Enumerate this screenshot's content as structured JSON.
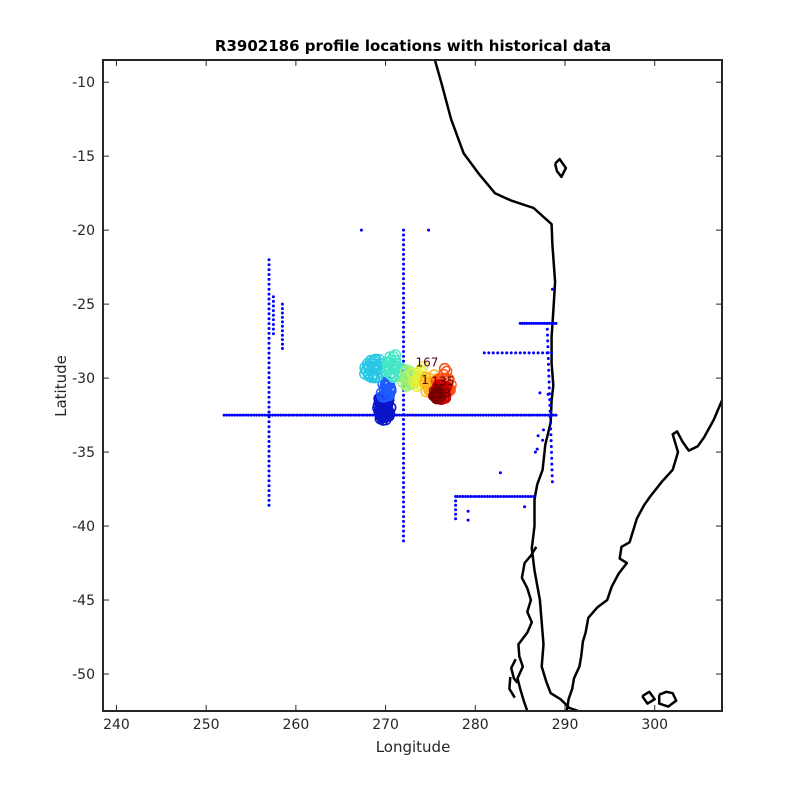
{
  "chart_data": {
    "type": "scatter",
    "title": "R3902186 profile locations with historical data",
    "xlabel": "Longitude",
    "ylabel": "Latitude",
    "xlim": [
      238.5,
      307.5
    ],
    "ylim": [
      -52.5,
      -8.5
    ],
    "xticks": [
      240,
      250,
      260,
      270,
      280,
      290,
      300
    ],
    "yticks": [
      -10,
      -15,
      -20,
      -25,
      -30,
      -35,
      -40,
      -45,
      -50
    ],
    "grid": false,
    "legend": "none",
    "colors": {
      "historical": "#0000ff",
      "coast": "#000000",
      "axes": "#262626"
    },
    "historical_points": {
      "lines": [
        {
          "x": [
            252,
            289
          ],
          "y": -32.5,
          "step": 0.3
        },
        {
          "x": 257,
          "y": [
            -38.6,
            -22
          ],
          "step": 0.33
        },
        {
          "x": 272,
          "y": [
            -41,
            -20
          ],
          "step": 0.33
        },
        {
          "x": 258.5,
          "y": [
            -28,
            -25
          ],
          "step": 0.3
        },
        {
          "x": 257.5,
          "y": [
            -27,
            -24.5
          ],
          "step": 0.3
        },
        {
          "x": [
            285,
            289
          ],
          "y": -26.3,
          "step": 0.25
        },
        {
          "x": [
            278,
            286.5
          ],
          "y": -38,
          "step": 0.3
        },
        {
          "x": 277.8,
          "y": [
            -39.5,
            -38
          ],
          "step": 0.3
        },
        {
          "x": [
            281,
            288.5
          ],
          "y": -28.3,
          "step": 0.5
        },
        {
          "x": [
            288,
            288.6
          ],
          "y": [
            -26.3,
            -37
          ],
          "step": 0.4
        }
      ],
      "points": [
        [
          267.3,
          -20
        ],
        [
          274.8,
          -20
        ],
        [
          288.6,
          -24
        ],
        [
          279.2,
          -39
        ],
        [
          279.2,
          -39.6
        ],
        [
          282.8,
          -36.4
        ],
        [
          285.5,
          -38.7
        ],
        [
          287.2,
          -31
        ],
        [
          287.6,
          -33.5
        ],
        [
          286.7,
          -35
        ],
        [
          287.5,
          -34.2
        ],
        [
          286.9,
          -34.8
        ],
        [
          288.1,
          -31.1
        ],
        [
          287.0,
          -33.9
        ]
      ]
    },
    "profiles": {
      "clusters": [
        {
          "cx": 269.8,
          "cy": -32.0,
          "rx": 0.8,
          "ry": 0.9,
          "n": 60,
          "color": "#0a14c8"
        },
        {
          "cx": 270.0,
          "cy": -30.8,
          "rx": 0.6,
          "ry": 0.6,
          "n": 25,
          "color": "#1e5aff"
        },
        {
          "cx": 268.6,
          "cy": -29.3,
          "rx": 1.2,
          "ry": 0.7,
          "n": 35,
          "color": "#28c8e6"
        },
        {
          "cx": 271.0,
          "cy": -29.2,
          "rx": 1.0,
          "ry": 0.8,
          "n": 30,
          "color": "#46e6c8"
        },
        {
          "cx": 272.6,
          "cy": -30.0,
          "rx": 0.9,
          "ry": 0.6,
          "n": 25,
          "color": "#96f078"
        },
        {
          "cx": 273.6,
          "cy": -29.8,
          "rx": 0.8,
          "ry": 0.8,
          "n": 20,
          "color": "#e6f03c"
        },
        {
          "cx": 275.2,
          "cy": -30.4,
          "rx": 0.9,
          "ry": 0.8,
          "n": 25,
          "color": "#ffb41e"
        },
        {
          "cx": 276.6,
          "cy": -30.2,
          "rx": 1.0,
          "ry": 0.9,
          "n": 30,
          "color": "#ff5014"
        },
        {
          "cx": 276.2,
          "cy": -30.9,
          "rx": 0.8,
          "ry": 0.6,
          "n": 30,
          "color": "#c80000"
        },
        {
          "cx": 275.8,
          "cy": -31.0,
          "rx": 0.5,
          "ry": 0.4,
          "n": 15,
          "color": "#800000"
        }
      ],
      "labels": [
        {
          "text": "1",
          "x": 274.4,
          "y": -30.4
        },
        {
          "text": "167",
          "x": 274.6,
          "y": -29.2
        },
        {
          "text": "135",
          "x": 276.4,
          "y": -30.5
        },
        {
          "text": "153",
          "x": 276.0,
          "y": -31.3
        }
      ]
    },
    "coastlines": [
      [
        [
          275.5,
          -8.5
        ],
        [
          276.2,
          -10
        ],
        [
          277.3,
          -12.5
        ],
        [
          278.7,
          -14.8
        ],
        [
          280.4,
          -16.2
        ],
        [
          282.2,
          -17.5
        ],
        [
          284,
          -18
        ],
        [
          286.5,
          -18.5
        ],
        [
          288.5,
          -19.6
        ],
        [
          288.6,
          -21
        ],
        [
          288.9,
          -23.5
        ],
        [
          288.7,
          -25.5
        ],
        [
          288.5,
          -27.2
        ],
        [
          288.5,
          -29
        ],
        [
          288.7,
          -30.5
        ],
        [
          288.5,
          -31.5
        ],
        [
          288.4,
          -33
        ],
        [
          287.8,
          -34.5
        ],
        [
          287.5,
          -36.2
        ],
        [
          286.9,
          -37.2
        ],
        [
          286.6,
          -38.2
        ],
        [
          286.6,
          -40
        ],
        [
          286.3,
          -41.5
        ],
        [
          286.6,
          -43
        ],
        [
          287.2,
          -45
        ],
        [
          287.4,
          -46.5
        ],
        [
          287.6,
          -48
        ],
        [
          287.4,
          -49.5
        ],
        [
          287.9,
          -50.5
        ],
        [
          288.4,
          -51.3
        ],
        [
          289.5,
          -51.7
        ],
        [
          290.5,
          -52.3
        ],
        [
          291.5,
          -52.5
        ]
      ],
      [
        [
          286.8,
          -41.4
        ],
        [
          286.2,
          -42
        ],
        [
          285.5,
          -42.5
        ],
        [
          285.2,
          -43.5
        ],
        [
          285.8,
          -44.2
        ],
        [
          286.2,
          -45
        ],
        [
          285.8,
          -45.8
        ],
        [
          286.3,
          -46.5
        ],
        [
          285.8,
          -47.2
        ],
        [
          284.8,
          -48
        ],
        [
          284.9,
          -48.8
        ],
        [
          285.3,
          -49.5
        ],
        [
          284.7,
          -50.3
        ],
        [
          285.0,
          -51
        ],
        [
          285.4,
          -51.8
        ],
        [
          285.8,
          -52.5
        ]
      ],
      [
        [
          284.5,
          -49
        ],
        [
          284.0,
          -49.6
        ],
        [
          284.3,
          -50.3
        ],
        [
          284.7,
          -50.6
        ]
      ],
      [
        [
          283.9,
          -50.2
        ],
        [
          283.8,
          -51
        ],
        [
          284.4,
          -51.6
        ]
      ],
      [
        [
          288.9,
          -15.5
        ],
        [
          289.4,
          -15.2
        ],
        [
          290.1,
          -15.8
        ],
        [
          289.6,
          -16.4
        ],
        [
          289.1,
          -16.0
        ],
        [
          288.9,
          -15.5
        ]
      ],
      [
        [
          307.5,
          -31.5
        ],
        [
          306.6,
          -32.8
        ],
        [
          305.5,
          -34.0
        ],
        [
          304.8,
          -34.6
        ],
        [
          303.8,
          -34.9
        ],
        [
          303.1,
          -34.3
        ],
        [
          302.5,
          -33.6
        ],
        [
          302.0,
          -33.8
        ],
        [
          302.6,
          -35.0
        ],
        [
          302.0,
          -36.2
        ],
        [
          300.8,
          -37.0
        ],
        [
          299.5,
          -38.0
        ],
        [
          298.8,
          -38.6
        ],
        [
          298.0,
          -39.5
        ],
        [
          297.6,
          -40.3
        ],
        [
          297.2,
          -41.1
        ],
        [
          296.3,
          -41.4
        ],
        [
          296.1,
          -42.2
        ],
        [
          296.9,
          -42.5
        ],
        [
          296.0,
          -43.2
        ],
        [
          295.2,
          -44.1
        ],
        [
          294.7,
          -45.0
        ],
        [
          293.6,
          -45.5
        ],
        [
          292.6,
          -46.2
        ],
        [
          292.3,
          -47.2
        ],
        [
          292.0,
          -47.8
        ],
        [
          291.8,
          -48.8
        ],
        [
          291.6,
          -49.5
        ],
        [
          291.0,
          -50.3
        ],
        [
          290.8,
          -51.0
        ],
        [
          290.4,
          -51.7
        ],
        [
          290.2,
          -52.5
        ]
      ],
      [
        [
          300.5,
          -51.4
        ],
        [
          301.3,
          -51.2
        ],
        [
          302.0,
          -51.3
        ],
        [
          302.4,
          -51.8
        ],
        [
          301.5,
          -52.2
        ],
        [
          300.5,
          -52.0
        ],
        [
          300.5,
          -51.4
        ]
      ],
      [
        [
          298.6,
          -51.5
        ],
        [
          299.4,
          -51.2
        ],
        [
          300.0,
          -51.7
        ],
        [
          299.2,
          -52.0
        ],
        [
          298.6,
          -51.5
        ]
      ]
    ]
  }
}
